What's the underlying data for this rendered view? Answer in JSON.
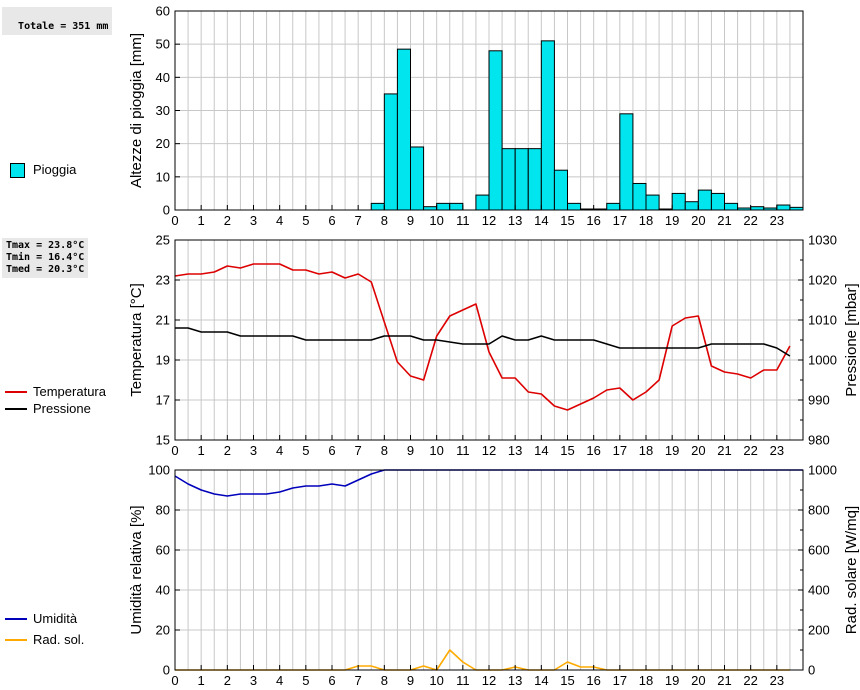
{
  "stats": {
    "total": "Totale = 351 mm",
    "tmax": "Tmax = 23.8°C",
    "tmin": "Tmin = 16.4°C",
    "tmed": "Tmed = 20.3°C"
  },
  "legend": {
    "rain": "Pioggia",
    "temperature": "Temperatura",
    "pressure": "Pressione",
    "humidity": "Umidità",
    "solar": "Rad. sol."
  },
  "colors": {
    "rain": "#00e5ee",
    "temperature": "#dd0000",
    "pressure": "#000000",
    "humidity": "#0000bb",
    "solar": "#ffaa00",
    "grid": "#c8c8c8"
  },
  "chart_data": [
    {
      "type": "bar",
      "ylabel": "Altezze di pioggia [mm]",
      "xlabel": "",
      "x_ticks": [
        "0",
        "1",
        "2",
        "3",
        "4",
        "5",
        "6",
        "7",
        "8",
        "9",
        "10",
        "11",
        "12",
        "13",
        "14",
        "15",
        "16",
        "17",
        "18",
        "19",
        "20",
        "21",
        "22",
        "23"
      ],
      "xlim": [
        0,
        24
      ],
      "ylim": [
        0,
        60
      ],
      "y_ticks": [
        0,
        10,
        20,
        30,
        40,
        50,
        60
      ],
      "grid": true,
      "series": [
        {
          "name": "Pioggia",
          "bin_width": 0.5,
          "x": [
            7.5,
            8.0,
            8.5,
            9.0,
            9.5,
            10.0,
            10.5,
            11.5,
            12.0,
            12.5,
            13.0,
            13.5,
            14.0,
            14.5,
            15.0,
            15.5,
            16.0,
            16.5,
            17.0,
            17.5,
            18.0,
            18.5,
            19.0,
            19.5,
            20.0,
            20.5,
            21.0,
            21.5,
            22.0,
            22.5,
            23.0,
            23.5
          ],
          "values": [
            2,
            35,
            48.5,
            19,
            1,
            2,
            2,
            4.5,
            48,
            18.5,
            18.5,
            18.5,
            51,
            12,
            2,
            0.3,
            0.3,
            2,
            29,
            8,
            4.5,
            0.3,
            5,
            2.5,
            6,
            5,
            2,
            0.6,
            1,
            0.6,
            1.5,
            0.8
          ]
        }
      ]
    },
    {
      "type": "line",
      "ylabel": "Temperatura [°C]",
      "y2label": "Pressione [mbar]",
      "x_ticks": [
        "0",
        "1",
        "2",
        "3",
        "4",
        "5",
        "6",
        "7",
        "8",
        "9",
        "10",
        "11",
        "12",
        "13",
        "14",
        "15",
        "16",
        "17",
        "18",
        "19",
        "20",
        "21",
        "22",
        "23"
      ],
      "xlim": [
        0,
        24
      ],
      "ylim": [
        15,
        25
      ],
      "y_ticks": [
        15,
        17,
        19,
        21,
        23,
        25
      ],
      "y2lim": [
        980,
        1030
      ],
      "y2_ticks": [
        980,
        990,
        1000,
        1010,
        1020,
        1030
      ],
      "grid": true,
      "series": [
        {
          "name": "Temperatura",
          "axis": "left",
          "x": [
            0,
            0.5,
            1,
            1.5,
            2,
            2.5,
            3,
            3.5,
            4,
            4.5,
            5,
            5.5,
            6,
            6.5,
            7,
            7.5,
            8,
            8.5,
            9,
            9.5,
            10,
            10.5,
            11,
            11.5,
            12,
            12.5,
            13,
            13.5,
            14,
            14.5,
            15,
            15.5,
            16,
            16.5,
            17,
            17.5,
            18,
            18.5,
            19,
            19.5,
            20,
            20.5,
            21,
            21.5,
            22,
            22.5,
            23,
            23.5
          ],
          "values": [
            23.2,
            23.3,
            23.3,
            23.4,
            23.7,
            23.6,
            23.8,
            23.8,
            23.8,
            23.5,
            23.5,
            23.3,
            23.4,
            23.1,
            23.3,
            22.9,
            20.9,
            18.9,
            18.2,
            18.0,
            20.2,
            21.2,
            21.5,
            21.8,
            19.4,
            18.1,
            18.1,
            17.4,
            17.3,
            16.7,
            16.5,
            16.8,
            17.1,
            17.5,
            17.6,
            17.0,
            17.4,
            18.0,
            20.7,
            21.1,
            21.2,
            18.7,
            18.4,
            18.3,
            18.1,
            18.5,
            18.5,
            19.7
          ]
        },
        {
          "name": "Pressione",
          "axis": "right",
          "x": [
            0,
            0.5,
            1,
            2,
            2.5,
            4.5,
            5,
            7.5,
            8,
            9,
            9.5,
            10,
            11,
            12,
            12.5,
            13,
            13.5,
            14,
            14.5,
            15,
            16,
            16.5,
            17,
            18,
            20,
            20.5,
            22.5,
            23,
            23.5
          ],
          "values": [
            1008,
            1008,
            1007,
            1007,
            1006,
            1006,
            1005,
            1005,
            1006,
            1006,
            1005,
            1005,
            1004,
            1004,
            1006,
            1005,
            1005,
            1006,
            1005,
            1005,
            1005,
            1004,
            1003,
            1003,
            1003,
            1004,
            1004,
            1003,
            1001
          ]
        }
      ]
    },
    {
      "type": "line",
      "ylabel": "Umidità relativa [%]",
      "y2label": "Rad. solare [W/mq]",
      "x_ticks": [
        "0",
        "1",
        "2",
        "3",
        "4",
        "5",
        "6",
        "7",
        "8",
        "9",
        "10",
        "11",
        "12",
        "13",
        "14",
        "15",
        "16",
        "17",
        "18",
        "19",
        "20",
        "21",
        "22",
        "23"
      ],
      "xlim": [
        0,
        24
      ],
      "ylim": [
        0,
        100
      ],
      "y_ticks": [
        0,
        20,
        40,
        60,
        80,
        100
      ],
      "y2lim": [
        0,
        1000
      ],
      "y2_ticks": [
        0,
        200,
        400,
        600,
        800,
        1000
      ],
      "grid": true,
      "series": [
        {
          "name": "Umidità",
          "axis": "left",
          "x": [
            0,
            0.5,
            1,
            1.5,
            2,
            2.5,
            3,
            3.5,
            4,
            4.5,
            5,
            5.5,
            6,
            6.5,
            7,
            7.5,
            8,
            8.5,
            24
          ],
          "values": [
            97,
            93,
            90,
            88,
            87,
            88,
            88,
            88,
            89,
            91,
            92,
            92,
            93,
            92,
            95,
            98,
            100,
            100,
            100
          ]
        },
        {
          "name": "Rad. sol.",
          "axis": "right",
          "x": [
            0,
            6.5,
            7,
            7.5,
            8,
            9,
            9.5,
            10,
            10.5,
            11,
            11.5,
            12.5,
            13,
            13.5,
            14.5,
            15,
            15.5,
            16,
            16.5,
            17,
            23.5
          ],
          "values": [
            0,
            0,
            20,
            20,
            0,
            0,
            20,
            0,
            100,
            40,
            0,
            0,
            15,
            0,
            0,
            40,
            15,
            15,
            0,
            0,
            0
          ]
        }
      ]
    }
  ]
}
